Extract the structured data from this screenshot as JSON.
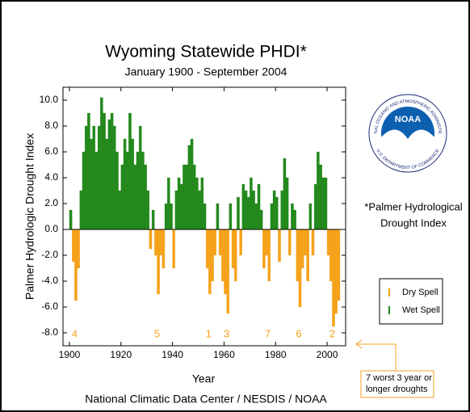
{
  "chart_data": {
    "type": "bar",
    "title": "Wyoming Statewide PHDI*",
    "subtitle": "January 1900 - September 2004",
    "x_label": "Year",
    "y_label": "Palmer Hydrologic Drought Index",
    "source": "National Climatic Data Center / NESDIS / NOAA",
    "note_lines": [
      "*Palmer Hydrological",
      "Drought Index"
    ],
    "callout": "7 worst 3 year or longer droughts",
    "logo": {
      "text": "NOAA",
      "ring_top": "NATIONAL OCEANIC AND ATMOSPHERIC ADMINISTRATION",
      "ring_bottom": "U.S. DEPARTMENT OF COMMERCE"
    },
    "xlim": [
      1897.5,
      2007.2
    ],
    "ylim": [
      -9,
      11
    ],
    "xticks": [
      1900,
      1920,
      1940,
      1960,
      1980,
      2000
    ],
    "yticks": [
      {
        "value": 10,
        "label": "10.0"
      },
      {
        "value": 8,
        "label": "8.0"
      },
      {
        "value": 6,
        "label": "6.0"
      },
      {
        "value": 4,
        "label": "4.0"
      },
      {
        "value": 2,
        "label": "2.0"
      },
      {
        "value": 0,
        "label": "0.0"
      },
      {
        "value": -2,
        "label": "-2.0"
      },
      {
        "value": -4,
        "label": "-4.0"
      },
      {
        "value": -6,
        "label": "-6.0"
      },
      {
        "value": -8,
        "label": "-8.0"
      }
    ],
    "x": [
      1900,
      1901,
      1902,
      1903,
      1904,
      1905,
      1906,
      1907,
      1908,
      1909,
      1910,
      1911,
      1912,
      1913,
      1914,
      1915,
      1916,
      1917,
      1918,
      1919,
      1920,
      1921,
      1922,
      1923,
      1924,
      1925,
      1926,
      1927,
      1928,
      1929,
      1930,
      1931,
      1932,
      1933,
      1934,
      1935,
      1936,
      1937,
      1938,
      1939,
      1940,
      1941,
      1942,
      1943,
      1944,
      1945,
      1946,
      1947,
      1948,
      1949,
      1950,
      1951,
      1952,
      1953,
      1954,
      1955,
      1956,
      1957,
      1958,
      1959,
      1960,
      1961,
      1962,
      1963,
      1964,
      1965,
      1966,
      1967,
      1968,
      1969,
      1970,
      1971,
      1972,
      1973,
      1974,
      1975,
      1976,
      1977,
      1978,
      1979,
      1980,
      1981,
      1982,
      1983,
      1984,
      1985,
      1986,
      1987,
      1988,
      1989,
      1990,
      1991,
      1992,
      1993,
      1994,
      1995,
      1996,
      1997,
      1998,
      1999,
      2000,
      2001,
      2002,
      2003,
      2004
    ],
    "series": [
      {
        "name": "Dry Spell",
        "color": "#f5a21b",
        "values": [
          null,
          -2.5,
          -5.5,
          -3,
          null,
          null,
          null,
          null,
          null,
          null,
          null,
          null,
          null,
          null,
          null,
          null,
          null,
          null,
          null,
          null,
          null,
          null,
          null,
          null,
          null,
          null,
          null,
          null,
          null,
          null,
          null,
          -1.5,
          null,
          -2,
          -5,
          -2,
          -3,
          null,
          null,
          null,
          -3,
          null,
          null,
          null,
          null,
          null,
          null,
          null,
          null,
          null,
          null,
          null,
          null,
          -3,
          -5,
          -4,
          -2,
          null,
          -2,
          -4,
          -5,
          -6.5,
          null,
          -3,
          -4,
          null,
          -2,
          null,
          null,
          null,
          null,
          null,
          null,
          null,
          null,
          -3,
          -2,
          -4,
          null,
          null,
          null,
          -2.5,
          null,
          null,
          null,
          -2,
          null,
          null,
          -4,
          -6,
          -3,
          -2,
          -4,
          null,
          -2,
          null,
          null,
          null,
          null,
          null,
          -2,
          -4,
          -7.5,
          -6.5,
          -5.5
        ]
      },
      {
        "name": "Wet Spell",
        "color": "#23891c",
        "values": [
          1.5,
          null,
          null,
          null,
          3,
          6,
          8,
          9,
          7,
          8,
          6,
          8,
          10.2,
          9,
          7,
          8.5,
          9,
          8,
          6,
          3,
          5,
          7,
          6,
          9,
          7,
          5,
          6,
          8,
          6,
          5,
          3,
          null,
          1.5,
          null,
          null,
          null,
          null,
          2,
          4,
          2,
          null,
          3,
          4,
          3.5,
          5,
          5,
          6.5,
          7,
          5,
          4,
          3,
          4,
          2,
          null,
          null,
          null,
          null,
          2,
          null,
          null,
          null,
          null,
          2,
          null,
          null,
          2.5,
          null,
          3.5,
          3,
          2.5,
          4,
          3,
          2,
          3.5,
          1.5,
          null,
          null,
          null,
          2,
          3,
          2.5,
          null,
          3,
          5.5,
          4,
          null,
          2,
          1.5,
          null,
          null,
          null,
          null,
          null,
          2,
          null,
          3.5,
          6,
          5,
          4,
          4,
          null,
          null,
          null,
          null,
          null
        ]
      }
    ],
    "annotations": [
      {
        "text": "4",
        "x": 1902
      },
      {
        "text": "5",
        "x": 1934
      },
      {
        "text": "1",
        "x": 1954
      },
      {
        "text": "3",
        "x": 1961
      },
      {
        "text": "7",
        "x": 1977
      },
      {
        "text": "6",
        "x": 1989
      },
      {
        "text": "2",
        "x": 2002
      }
    ],
    "annotation_color": "#f5a21b"
  }
}
